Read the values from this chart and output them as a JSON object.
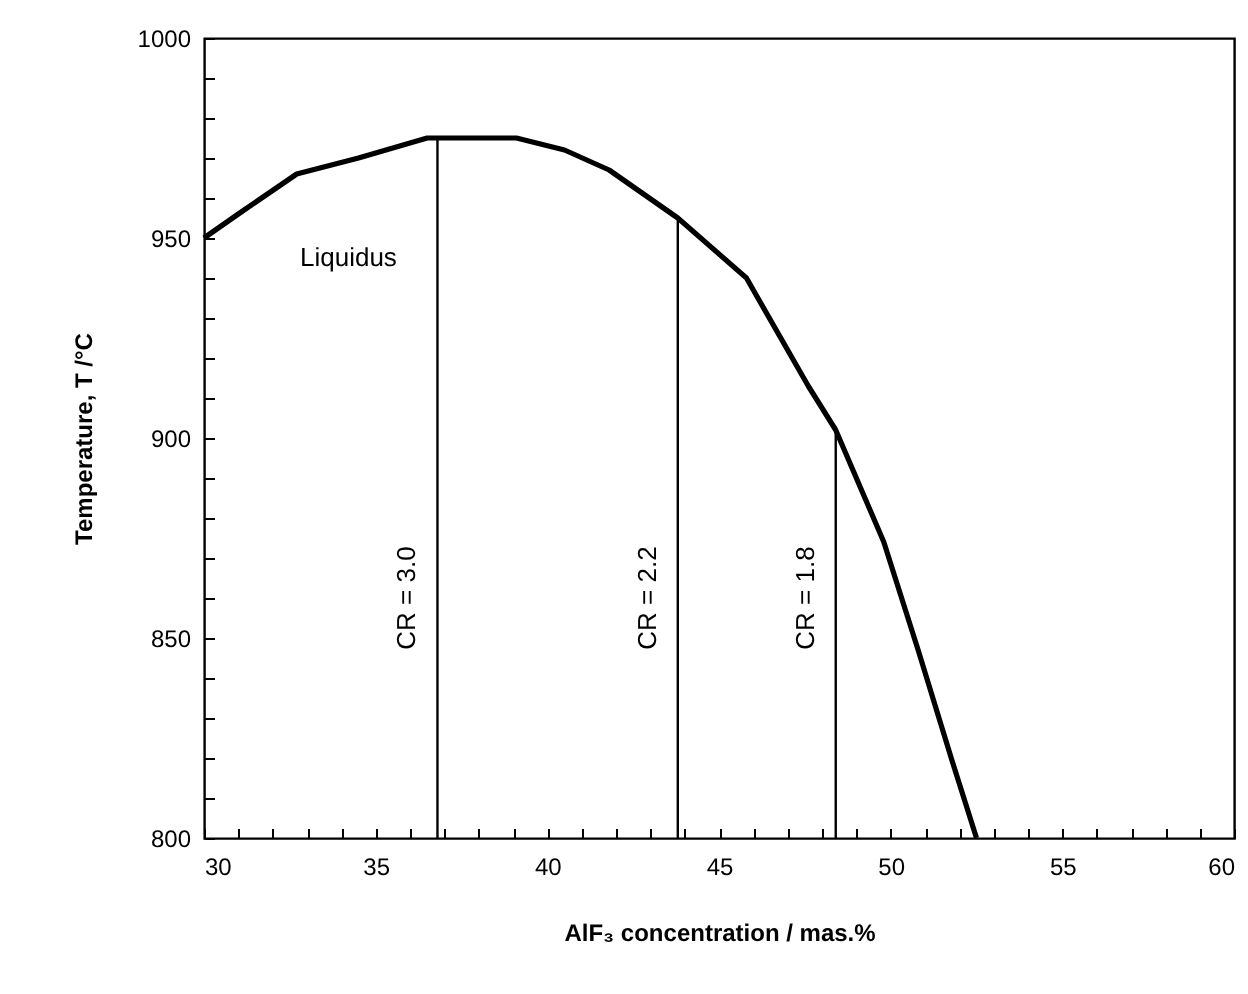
{
  "chart_data": {
    "type": "line",
    "xlabel": "AlF₃ concentration / mas.%",
    "ylabel": "Temperature, T /°C",
    "xlim": [
      30,
      60
    ],
    "ylim": [
      800,
      1000
    ],
    "xticks": [
      30,
      {
        "value": 31,
        "label": null
      },
      {
        "value": 32,
        "label": null
      },
      {
        "value": 33,
        "label": null
      },
      {
        "value": 34,
        "label": null
      },
      35,
      {
        "value": 36,
        "label": null
      },
      {
        "value": 37,
        "label": null
      },
      {
        "value": 38,
        "label": null
      },
      {
        "value": 39,
        "label": null
      },
      40,
      {
        "value": 41,
        "label": null
      },
      {
        "value": 42,
        "label": null
      },
      {
        "value": 43,
        "label": null
      },
      {
        "value": 44,
        "label": null
      },
      45,
      {
        "value": 46,
        "label": null
      },
      {
        "value": 47,
        "label": null
      },
      {
        "value": 48,
        "label": null
      },
      {
        "value": 49,
        "label": null
      },
      50,
      {
        "value": 51,
        "label": null
      },
      {
        "value": 52,
        "label": null
      },
      {
        "value": 53,
        "label": null
      },
      {
        "value": 54,
        "label": null
      },
      55,
      {
        "value": 56,
        "label": null
      },
      {
        "value": 57,
        "label": null
      },
      {
        "value": 58,
        "label": null
      },
      {
        "value": 59,
        "label": null
      },
      60
    ],
    "yticks": [
      800,
      {
        "value": 810,
        "label": null
      },
      {
        "value": 820,
        "label": null
      },
      {
        "value": 830,
        "label": null
      },
      {
        "value": 840,
        "label": null
      },
      850,
      {
        "value": 860,
        "label": null
      },
      {
        "value": 870,
        "label": null
      },
      {
        "value": 880,
        "label": null
      },
      {
        "value": 890,
        "label": null
      },
      900,
      {
        "value": 910,
        "label": null
      },
      {
        "value": 920,
        "label": null
      },
      {
        "value": 930,
        "label": null
      },
      {
        "value": 940,
        "label": null
      },
      950,
      {
        "value": 960,
        "label": null
      },
      {
        "value": 970,
        "label": null
      },
      {
        "value": 980,
        "label": null
      },
      {
        "value": 990,
        "label": null
      },
      1000
    ],
    "grid": false,
    "marker": "none",
    "series": [
      {
        "color": "#000000",
        "x": [
          30,
          31,
          32.7,
          34.5,
          36.5,
          37.5,
          39.1,
          40.5,
          41.8,
          43.8,
          45.8,
          47.6,
          48.4,
          49.8,
          50.8,
          51.8,
          52.5
        ],
        "values": [
          950,
          956,
          966,
          970,
          975,
          975,
          975,
          972,
          967,
          955,
          940,
          913,
          902,
          874,
          847,
          819,
          800
        ]
      },
      {
        "color": "#000000",
        "x": [
          36.8,
          36.8
        ],
        "values": [
          800,
          975
        ]
      },
      {
        "color": "#000000",
        "x": [
          43.8,
          43.8
        ],
        "values": [
          800,
          955
        ]
      },
      {
        "color": "#000000",
        "x": [
          48.4,
          48.4
        ],
        "values": [
          800,
          902
        ]
      }
    ],
    "annotations": [
      "Liquidus",
      {
        "text": "CR = 3.0",
        "x": 36.8,
        "y": 860
      },
      {
        "text": "CR = 2.2",
        "x": 43.8,
        "y": 860
      },
      {
        "text": "CR = 1.8",
        "x": 48.4,
        "y": 860
      }
    ]
  }
}
